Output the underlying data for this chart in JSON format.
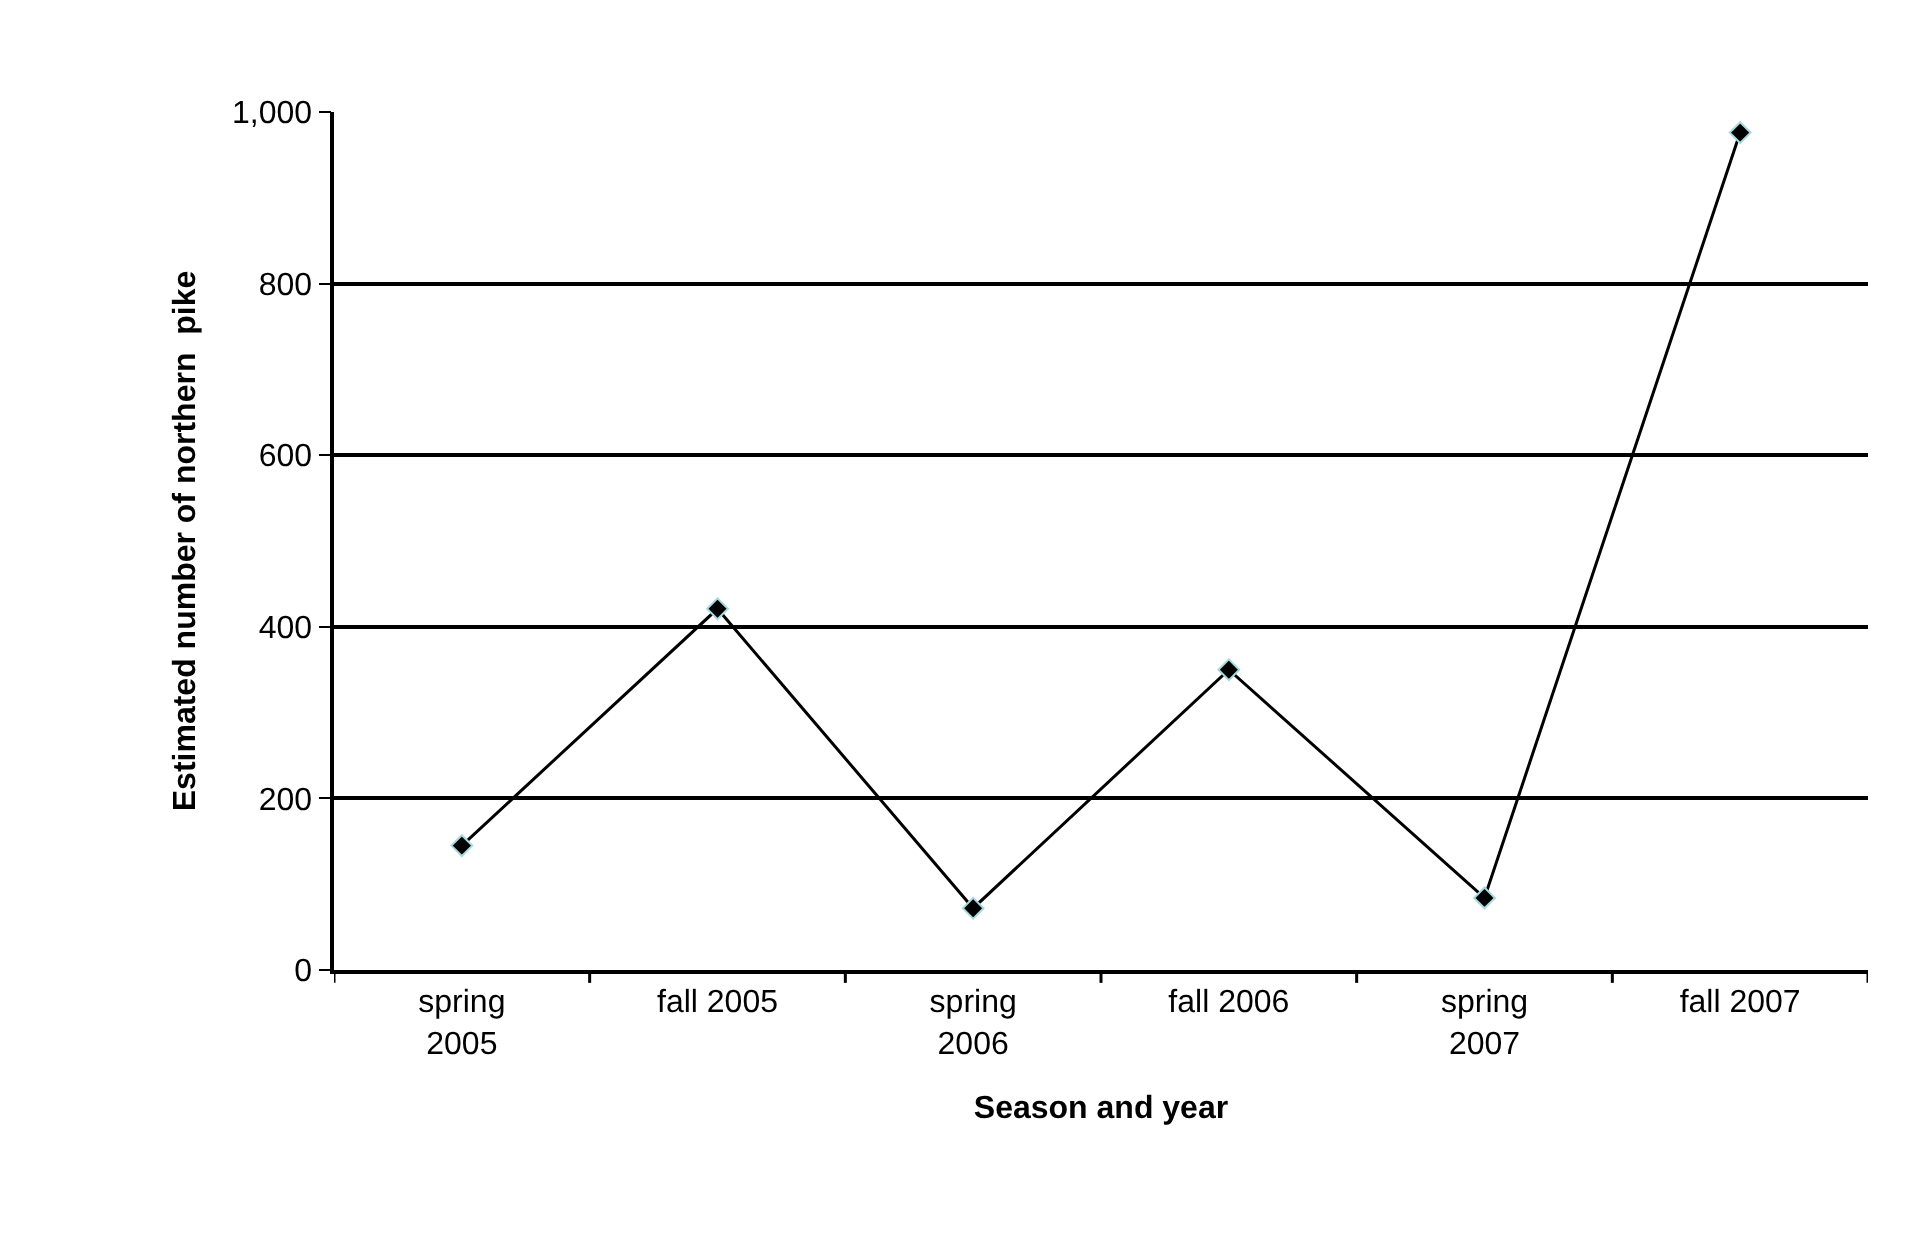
{
  "chart_data": {
    "type": "line",
    "xlabel": "Season and year",
    "ylabel": "Estimated number of northern  pike",
    "categories": [
      "spring 2005",
      "fall 2005",
      "spring 2006",
      "fall 2006",
      "spring 2007",
      "fall 2007"
    ],
    "series": [
      {
        "color": "#000000",
        "values": [
          145,
          421,
          72,
          350,
          84,
          976
        ]
      }
    ],
    "ylim": [
      0,
      1000
    ],
    "yticks": [
      0,
      200,
      400,
      600,
      800,
      {
        "value": 1000,
        "label": "1,000"
      }
    ],
    "grid": "y",
    "legend": false,
    "marker": "diamond",
    "line_style": "solid"
  }
}
